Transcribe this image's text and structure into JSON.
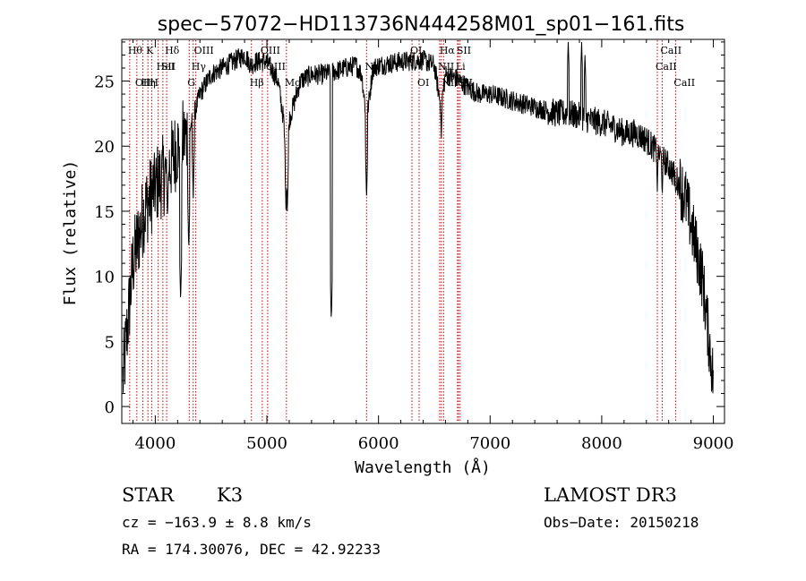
{
  "chart_data": {
    "type": "line",
    "title": "spec−57072−HD113736N444258M01_sp01−161.fits",
    "xlabel": "Wavelength (Å)",
    "ylabel": "Flux (relative)",
    "xlim": [
      3700,
      9100
    ],
    "ylim": [
      -1.3,
      28.2
    ],
    "xticks": [
      4000,
      5000,
      6000,
      7000,
      8000,
      9000
    ],
    "yticks": [
      0,
      5,
      10,
      15,
      20,
      25
    ],
    "grid": false,
    "spectrum_anchors": {
      "x": [
        3710,
        3760,
        3800,
        3850,
        3900,
        3950,
        4000,
        4050,
        4100,
        4150,
        4200,
        4300,
        4400,
        4500,
        4600,
        4700,
        4800,
        4860,
        4900,
        5000,
        5100,
        5150,
        5175,
        5200,
        5300,
        5400,
        5500,
        5600,
        5700,
        5800,
        5850,
        5893,
        5950,
        6000,
        6200,
        6400,
        6500,
        6560,
        6600,
        6700,
        6800,
        6900,
        7000,
        7200,
        7400,
        7600,
        7700,
        7800,
        7900,
        8000,
        8100,
        8200,
        8300,
        8400,
        8500,
        8600,
        8700,
        8750,
        8800,
        8850,
        8900,
        8950,
        9000
      ],
      "y": [
        2,
        7,
        11,
        13,
        15,
        16,
        17,
        17.5,
        18,
        19,
        20,
        21,
        24,
        25.5,
        26,
        26.5,
        27,
        26.2,
        26.5,
        26.5,
        25,
        22,
        17,
        22,
        25,
        25.5,
        25.5,
        25.7,
        26,
        26.2,
        25.5,
        22,
        26,
        26.2,
        26.5,
        26.6,
        26.2,
        23,
        25.5,
        25.2,
        24.5,
        24,
        24,
        23.5,
        23,
        22.5,
        22.5,
        22.3,
        22,
        21.8,
        21.5,
        21,
        21,
        20.5,
        19.5,
        18.5,
        17,
        16,
        14,
        12,
        10,
        6,
        2
      ]
    },
    "absorption_features": [
      {
        "x": 4000,
        "y": 16.3
      },
      {
        "x": 4110,
        "y": 14.4
      },
      {
        "x": 4227,
        "y": 8.0
      },
      {
        "x": 4300,
        "y": 12.0
      },
      {
        "x": 4340,
        "y": 16.0
      },
      {
        "x": 5172,
        "y": 14.7
      },
      {
        "x": 5183,
        "y": 15.0
      },
      {
        "x": 5577,
        "y": 6.5
      },
      {
        "x": 5893,
        "y": 15.8
      },
      {
        "x": 6563,
        "y": 20.6
      },
      {
        "x": 8498,
        "y": 16.5
      },
      {
        "x": 8542,
        "y": 16.0
      },
      {
        "x": 8662,
        "y": 16.0
      }
    ],
    "emission_features": [
      {
        "x": 7700,
        "y": 28.0
      },
      {
        "x": 7820,
        "y": 28.0
      },
      {
        "x": 7850,
        "y": 27.0
      }
    ],
    "spectral_lines": [
      {
        "x": 3771,
        "label": "Hθ",
        "row": 0
      },
      {
        "x": 3835,
        "label": "OⅠI",
        "row": 2
      },
      {
        "x": 3889,
        "label": "Hη",
        "row": 2
      },
      {
        "x": 3934,
        "label": "K",
        "row": 0
      },
      {
        "x": 3968,
        "label": "H",
        "row": 2
      },
      {
        "x": 4026,
        "label": "HeI",
        "row": 1
      },
      {
        "x": 4068,
        "label": "SII",
        "row": 1
      },
      {
        "x": 4102,
        "label": "Hδ",
        "row": 0
      },
      {
        "x": 4304,
        "label": "G",
        "row": 2
      },
      {
        "x": 4340,
        "label": "Hγ",
        "row": 1
      },
      {
        "x": 4363,
        "label": "OIII",
        "row": 0
      },
      {
        "x": 4861,
        "label": "Hβ",
        "row": 2
      },
      {
        "x": 4959,
        "label": "OIII",
        "row": 0
      },
      {
        "x": 5007,
        "label": "OIII",
        "row": 1
      },
      {
        "x": 5175,
        "label": "Mg",
        "row": 2
      },
      {
        "x": 5893,
        "label": "Na",
        "row": 1
      },
      {
        "x": 6300,
        "label": "OI",
        "row": 0
      },
      {
        "x": 6364,
        "label": "OI",
        "row": 2
      },
      {
        "x": 6548,
        "label": "NII",
        "row": 1
      },
      {
        "x": 6563,
        "label": "Hα",
        "row": 0
      },
      {
        "x": 6583,
        "label": "NII",
        "row": 2
      },
      {
        "x": 6708,
        "label": "Li",
        "row": 1
      },
      {
        "x": 6716,
        "label": "SII",
        "row": 0
      },
      {
        "x": 6731,
        "label": "SII",
        "row": 2
      },
      {
        "x": 8498,
        "label": "CaII",
        "row": 1
      },
      {
        "x": 8542,
        "label": "CaII",
        "row": 0
      },
      {
        "x": 8662,
        "label": "CaII",
        "row": 2
      }
    ]
  },
  "info": {
    "object_class": "STAR",
    "subclass": "K3",
    "survey": "LAMOST DR3",
    "cz": "cz = −163.9 ± 8.8 km/s",
    "obs_date": "Obs−Date: 20150218",
    "coords": "RA = 174.30076, DEC =  42.92233"
  },
  "colors": {
    "background": "#ffffff",
    "foreground": "#000000",
    "line_marker": "#cc0000"
  }
}
